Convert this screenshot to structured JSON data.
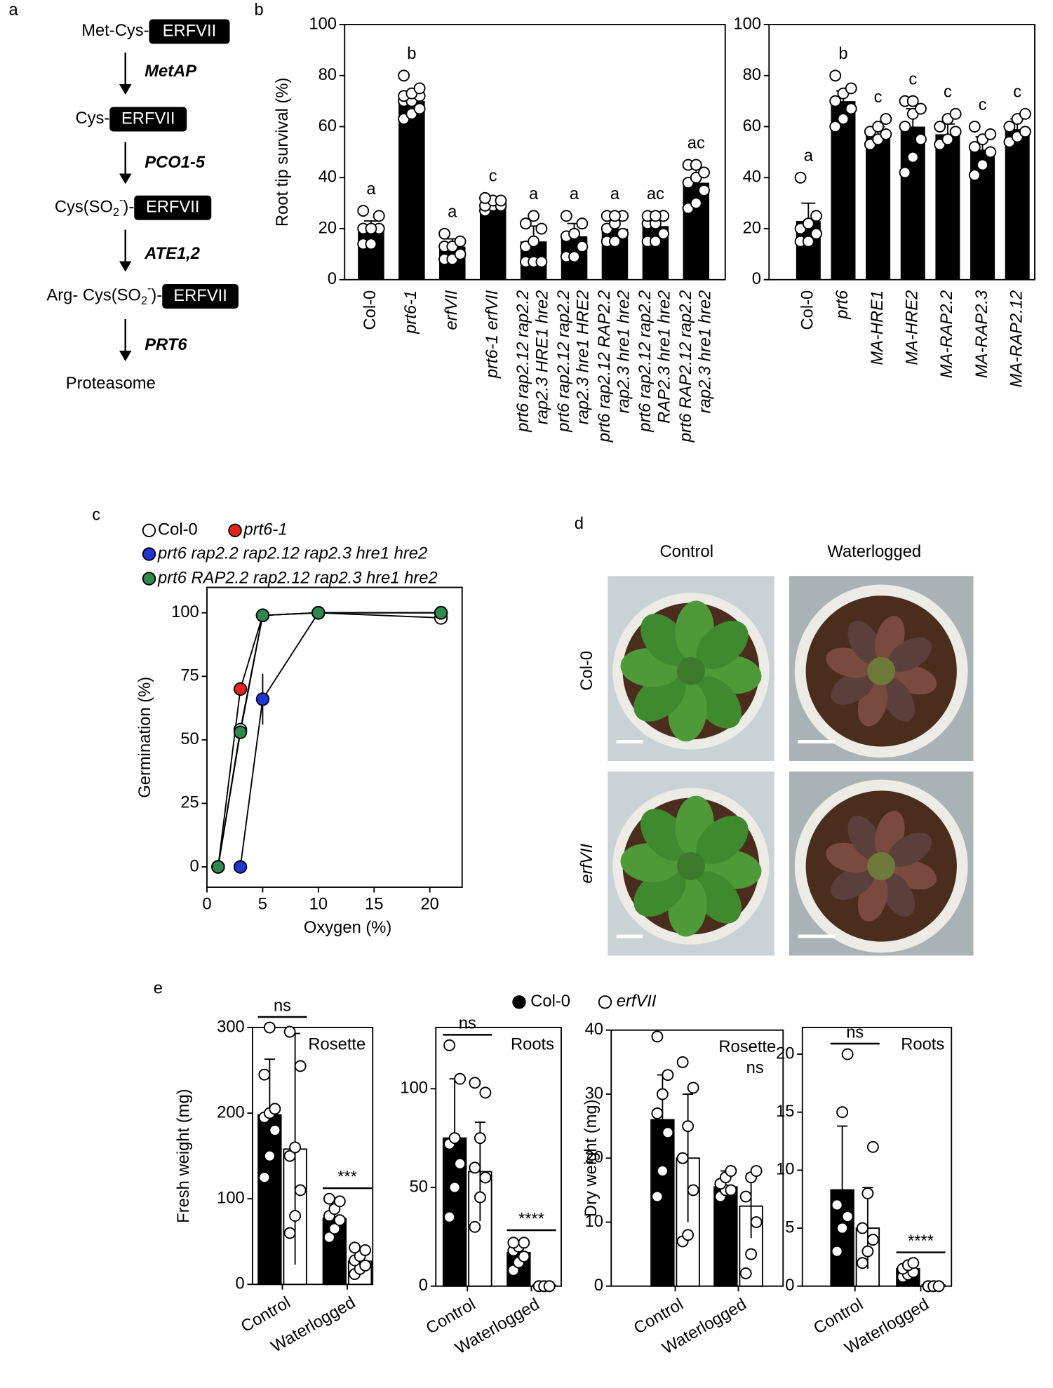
{
  "panel_labels": [
    "a",
    "b",
    "c",
    "d",
    "e"
  ],
  "pathway": {
    "steps": [
      {
        "prefix": [
          "Met-Cys-"
        ],
        "box": "ERFVII"
      },
      {
        "prefix": [
          "Cys-"
        ],
        "box": "ERFVII"
      },
      {
        "prefix": [
          "Cys(SO",
          "2",
          "-",
          ")-"
        ],
        "box": "ERFVII"
      },
      {
        "prefix": [
          "Arg- Cys(SO",
          "2",
          "-",
          ")-"
        ],
        "box": "ERFVII"
      }
    ],
    "enzymes": [
      "MetAP",
      "PCO1-5",
      "ATE1,2",
      "PRT6"
    ],
    "end": "Proteasome"
  },
  "photos": {
    "columns": [
      "Control",
      "Waterlogged"
    ],
    "rows": [
      "Col-0",
      "erfVII"
    ]
  },
  "legend_e": [
    {
      "name": "Col-0",
      "color": "#000000"
    },
    {
      "name": "erfVII",
      "color": "#ffffff"
    }
  ],
  "chart_data": [
    {
      "type": "bar",
      "ylabel": "Root tip survival (%)",
      "ylim": [
        0,
        100
      ],
      "yticks": [
        0,
        20,
        40,
        60,
        80,
        100
      ],
      "color": "#000000",
      "categories": [
        [
          "Col-0"
        ],
        [
          "prt6-1"
        ],
        [
          "erfVII"
        ],
        [
          "prt6-1 erfVII"
        ],
        [
          "prt6 rap2.12 rap2.2",
          "rap2.3 HRE1 hre2"
        ],
        [
          "prt6 rap2.12 rap2.2",
          "rap2.3 hre1 HRE2"
        ],
        [
          "prt6 rap2.12 RAP2.2",
          "rap2.3 hre1 hre2"
        ],
        [
          "prt6 rap2.12 rap2.2",
          "RAP2.3 hre1 hre2"
        ],
        [
          "prt6 RAP2.12 rap2.2",
          "rap2.3 hre1 hre2"
        ]
      ],
      "values": [
        20,
        70,
        13,
        29,
        15,
        17,
        20,
        21,
        38
      ],
      "errors": [
        3,
        4,
        3,
        2,
        6,
        5,
        5,
        4,
        6
      ],
      "letters": [
        "a",
        "b",
        "a",
        "c",
        "a",
        "a",
        "a",
        "ac",
        "ac"
      ],
      "points": [
        [
          14,
          14,
          20,
          20,
          20,
          25,
          27
        ],
        [
          63,
          65,
          67,
          70,
          70,
          72,
          72,
          73,
          75,
          80
        ],
        [
          8,
          8,
          10,
          13,
          13,
          15,
          18
        ],
        [
          27,
          29,
          29,
          29,
          31,
          31,
          32
        ],
        [
          7,
          7,
          7,
          13,
          15,
          20,
          22,
          25
        ],
        [
          9,
          9,
          13,
          17,
          18,
          22,
          25
        ],
        [
          15,
          15,
          18,
          20,
          22,
          25,
          25,
          25
        ],
        [
          15,
          15,
          18,
          22,
          22,
          25,
          25,
          25
        ],
        [
          28,
          30,
          35,
          38,
          40,
          42,
          45,
          45
        ]
      ]
    },
    {
      "type": "bar",
      "ylim": [
        0,
        100
      ],
      "yticks": [
        0,
        20,
        40,
        60,
        80,
        100
      ],
      "color": "#000000",
      "categories": [
        [
          "Col-0"
        ],
        [
          "prt6"
        ],
        [
          "MA-HRE1"
        ],
        [
          "MA-HRE2"
        ],
        [
          "MA-RAP2.2"
        ],
        [
          "MA-RAP2.3"
        ],
        [
          "MA-RAP2.12"
        ]
      ],
      "values": [
        23,
        70,
        57,
        60,
        57,
        51,
        59
      ],
      "errors": [
        7,
        4,
        3,
        7,
        4,
        5,
        4
      ],
      "letters": [
        "a",
        "b",
        "c",
        "c",
        "c",
        "c",
        "c"
      ],
      "points": [
        [
          15,
          15,
          18,
          20,
          22,
          25,
          40
        ],
        [
          60,
          63,
          67,
          70,
          73,
          75,
          80
        ],
        [
          53,
          55,
          57,
          58,
          60,
          63
        ],
        [
          42,
          48,
          55,
          60,
          65,
          67,
          70,
          70
        ],
        [
          53,
          55,
          58,
          60,
          63,
          65
        ],
        [
          41,
          45,
          50,
          52,
          55,
          57,
          60
        ],
        [
          54,
          56,
          58,
          60,
          63,
          65
        ]
      ]
    },
    {
      "type": "line",
      "ylabel": "Germination (%)",
      "xlabel": "Oxygen (%)",
      "xlim": [
        0,
        22.9
      ],
      "ylim": [
        -8,
        110
      ],
      "xticks": [
        0,
        5,
        10,
        15,
        20
      ],
      "yticks": [
        0,
        25,
        50,
        75,
        100
      ],
      "series": [
        {
          "name": "Col-0",
          "color": "#ffffff",
          "x": [
            1,
            3,
            5,
            10,
            21
          ],
          "values": [
            0,
            54,
            99,
            100,
            98
          ]
        },
        {
          "name": "prt6-1",
          "color": "#e8231f",
          "x": [
            1,
            3,
            5,
            10,
            21
          ],
          "values": [
            0,
            70,
            99,
            100,
            100
          ]
        },
        {
          "name": "prt6 rap2.2 rap2.12 rap2.3 hre1 hre2",
          "color": "#1f35d6",
          "x": [
            3,
            5,
            10,
            21
          ],
          "values": [
            0,
            66,
            100,
            100
          ],
          "errors": [
            null,
            10,
            null,
            null
          ]
        },
        {
          "name": "prt6 RAP2.2 rap2.12 rap2.3 hre1 hre2",
          "color": "#2e8a4c",
          "x": [
            1,
            3,
            5,
            10,
            21
          ],
          "values": [
            0,
            53,
            99,
            100,
            100
          ]
        }
      ]
    },
    {
      "type": "grouped_bar",
      "title": "Rosette",
      "ylabel": "Fresh weight (mg)",
      "ylim": [
        0,
        300
      ],
      "yticks": [
        0,
        100,
        200,
        300
      ],
      "categories": [
        "Control",
        "Waterlogged"
      ],
      "series": [
        {
          "color": "#000000",
          "values": [
            198,
            77
          ],
          "errors": [
            65,
            15
          ],
          "points": [
            [
              125,
              150,
              180,
              195,
              200,
              205,
              245,
              300
            ],
            [
              55,
              65,
              75,
              80,
              88,
              97,
              100
            ]
          ]
        },
        {
          "color": "#ffffff",
          "values": [
            158,
            27
          ],
          "errors": [
            135,
            12
          ],
          "points": [
            [
              60,
              80,
              110,
              150,
              160,
              255,
              295
            ],
            [
              12,
              18,
              22,
              28,
              33,
              40,
              43
            ]
          ]
        }
      ],
      "annotations": [
        {
          "text": "ns",
          "category": "Control"
        },
        {
          "text": "***",
          "category": "Waterlogged"
        }
      ]
    },
    {
      "type": "grouped_bar",
      "title": "Roots",
      "ylim": [
        0,
        131
      ],
      "yticks": [
        0,
        50,
        100
      ],
      "categories": [
        "Control",
        "Waterlogged"
      ],
      "series": [
        {
          "color": "#000000",
          "values": [
            75,
            17
          ],
          "errors": [
            30,
            6
          ],
          "points": [
            [
              35,
              50,
              62,
              72,
              75,
              105,
              122
            ],
            [
              8,
              12,
              15,
              18,
              20,
              22,
              22
            ]
          ]
        },
        {
          "color": "#ffffff",
          "values": [
            58,
            0.5
          ],
          "errors": [
            25,
            0.5
          ],
          "points": [
            [
              30,
              45,
              55,
              60,
              75,
              98,
              103
            ],
            [
              0,
              0,
              0,
              0,
              0,
              0
            ]
          ]
        }
      ],
      "annotations": [
        {
          "text": "ns",
          "category": "Control"
        },
        {
          "text": "****",
          "category": "Waterlogged"
        }
      ]
    },
    {
      "type": "grouped_bar",
      "title": "Rosette",
      "note": "ns",
      "ylabel": "Dry weight (mg)",
      "ylim": [
        0,
        40
      ],
      "yticks": [
        0,
        10,
        20,
        30,
        40
      ],
      "categories": [
        "Control",
        "Waterlogged"
      ],
      "series": [
        {
          "color": "#000000",
          "values": [
            26,
            15.5
          ],
          "errors": [
            7,
            2.5
          ],
          "points": [
            [
              14,
              18,
              24,
              27,
              30,
              33,
              39
            ],
            [
              14,
              15,
              15,
              16,
              17,
              18
            ]
          ]
        },
        {
          "color": "#ffffff",
          "values": [
            20,
            12.5
          ],
          "errors": [
            10,
            5
          ],
          "points": [
            [
              7,
              8,
              15,
              20,
              25,
              31,
              35
            ],
            [
              2,
              5,
              10,
              14,
              17,
              18
            ]
          ]
        }
      ],
      "annotations": []
    },
    {
      "type": "grouped_bar",
      "title": "Roots",
      "ylim": [
        0,
        22.3
      ],
      "yticks": [
        0,
        5,
        10,
        15,
        20
      ],
      "categories": [
        "Control",
        "Waterlogged"
      ],
      "series": [
        {
          "color": "#000000",
          "values": [
            8.3,
            1.5
          ],
          "errors": [
            5.5,
            0.5
          ],
          "points": [
            [
              3,
              5,
              6,
              7,
              15,
              20
            ],
            [
              0.8,
              1,
              1.2,
              1.5,
              1.8,
              2
            ]
          ]
        },
        {
          "color": "#ffffff",
          "values": [
            5,
            0.1
          ],
          "errors": [
            3.5,
            0.1
          ],
          "points": [
            [
              2,
              3,
              4,
              5,
              8,
              12
            ],
            [
              0,
              0,
              0,
              0,
              0,
              0
            ]
          ]
        }
      ],
      "annotations": [
        {
          "text": "ns",
          "category": "Control"
        },
        {
          "text": "****",
          "category": "Waterlogged"
        }
      ]
    }
  ]
}
